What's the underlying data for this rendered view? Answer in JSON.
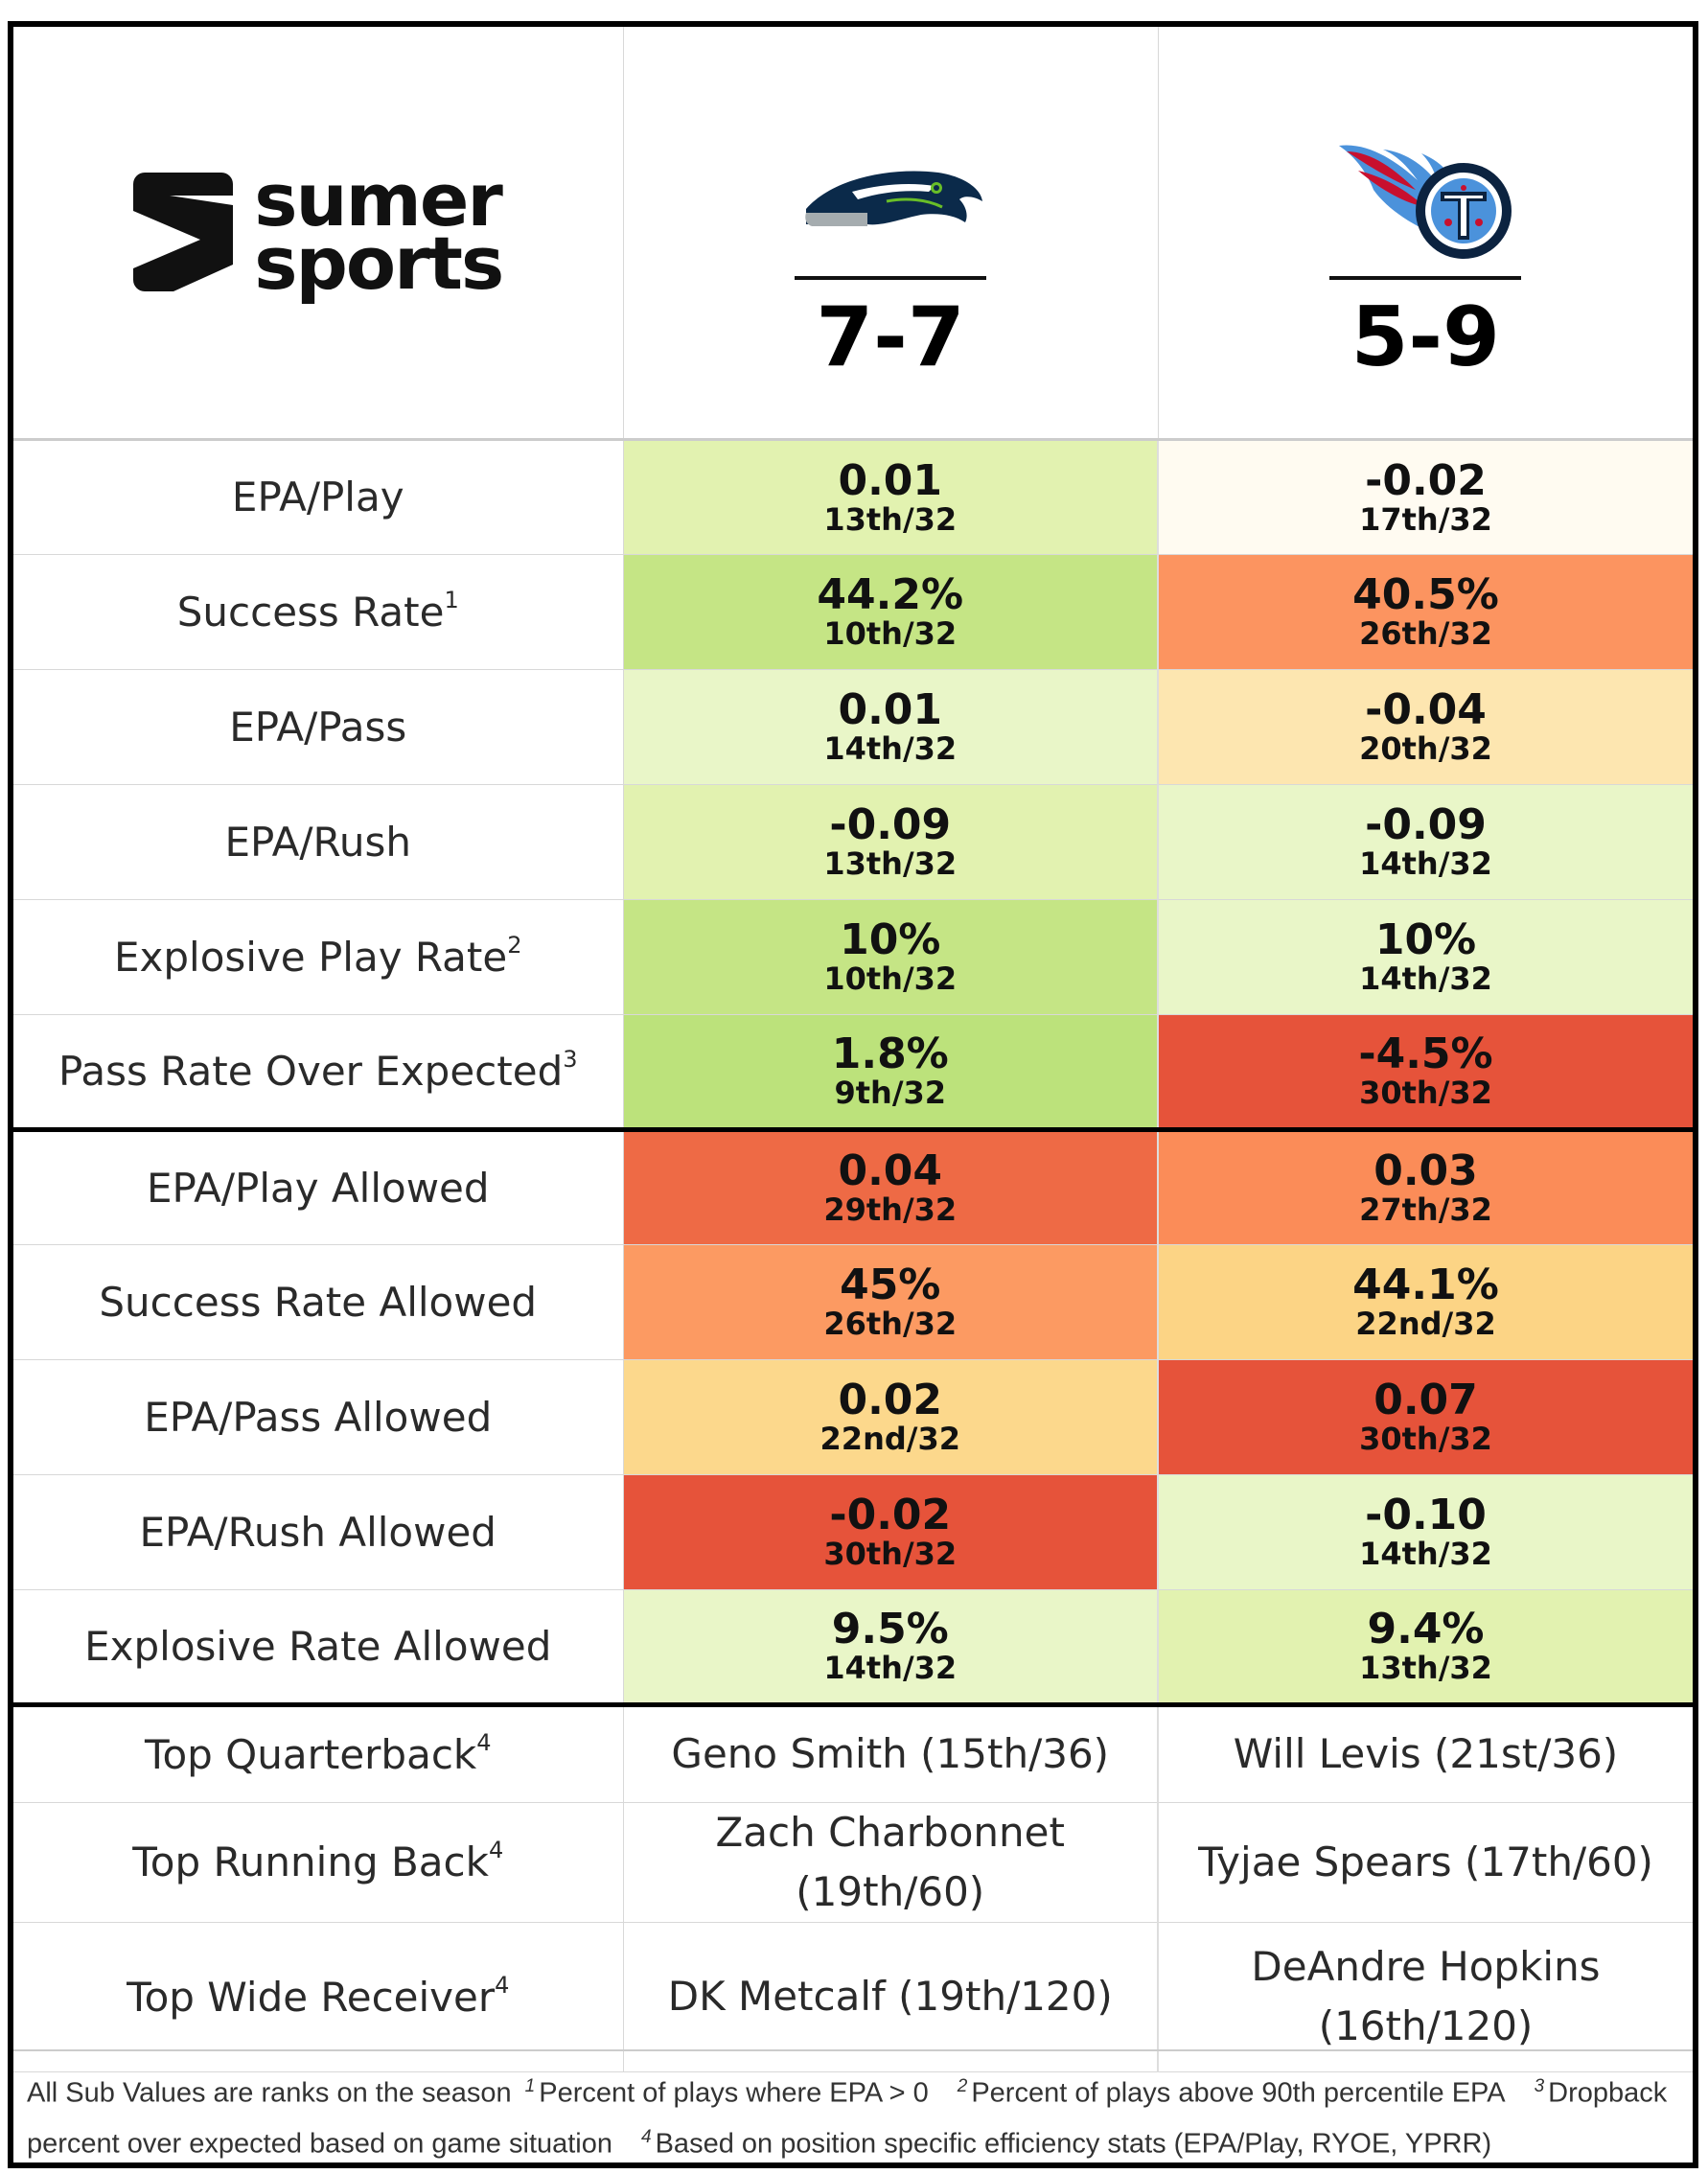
{
  "brand": {
    "line1": "sumer",
    "line2": "sports"
  },
  "teams": [
    {
      "logo": "seahawks-logo",
      "record": "7-7"
    },
    {
      "logo": "titans-logo",
      "record": "5-9"
    }
  ],
  "offense": [
    {
      "label": "EPA/Play",
      "sup": "",
      "team1": {
        "value": "0.01",
        "rank": "13th/32",
        "color": "#e2f2b0"
      },
      "team2": {
        "value": "-0.02",
        "rank": "17th/32",
        "color": "#fffbf1"
      }
    },
    {
      "label": "Success Rate",
      "sup": "1",
      "team1": {
        "value": "44.2%",
        "rank": "10th/32",
        "color": "#c5e585"
      },
      "team2": {
        "value": "40.5%",
        "rank": "26th/32",
        "color": "#fc9460"
      }
    },
    {
      "label": "EPA/Pass",
      "sup": "",
      "team1": {
        "value": "0.01",
        "rank": "14th/32",
        "color": "#e9f6c8"
      },
      "team2": {
        "value": "-0.04",
        "rank": "20th/32",
        "color": "#fde6b0"
      }
    },
    {
      "label": "EPA/Rush",
      "sup": "",
      "team1": {
        "value": "-0.09",
        "rank": "13th/32",
        "color": "#e2f2b0"
      },
      "team2": {
        "value": "-0.09",
        "rank": "14th/32",
        "color": "#e9f6c8"
      }
    },
    {
      "label": "Explosive Play Rate",
      "sup": "2",
      "team1": {
        "value": "10%",
        "rank": "10th/32",
        "color": "#c5e585"
      },
      "team2": {
        "value": "10%",
        "rank": "14th/32",
        "color": "#e9f6c8"
      }
    },
    {
      "label": "Pass Rate Over Expected",
      "sup": "3",
      "team1": {
        "value": "1.8%",
        "rank": "9th/32",
        "color": "#bce27b"
      },
      "team2": {
        "value": "-4.5%",
        "rank": "30th/32",
        "color": "#e6533a"
      }
    }
  ],
  "defense": [
    {
      "label": "EPA/Play Allowed",
      "sup": "",
      "team1": {
        "value": "0.04",
        "rank": "29th/32",
        "color": "#ee6a45"
      },
      "team2": {
        "value": "0.03",
        "rank": "27th/32",
        "color": "#fb8c58"
      }
    },
    {
      "label": "Success Rate Allowed",
      "sup": "",
      "team1": {
        "value": "45%",
        "rank": "26th/32",
        "color": "#fc9a62"
      },
      "team2": {
        "value": "44.1%",
        "rank": "22nd/32",
        "color": "#fcd485"
      }
    },
    {
      "label": "EPA/Pass Allowed",
      "sup": "",
      "team1": {
        "value": "0.02",
        "rank": "22nd/32",
        "color": "#fcd88c"
      },
      "team2": {
        "value": "0.07",
        "rank": "30th/32",
        "color": "#e6533a"
      }
    },
    {
      "label": "EPA/Rush Allowed",
      "sup": "",
      "team1": {
        "value": "-0.02",
        "rank": "30th/32",
        "color": "#e6533a"
      },
      "team2": {
        "value": "-0.10",
        "rank": "14th/32",
        "color": "#e9f6c8"
      }
    },
    {
      "label": "Explosive Rate Allowed",
      "sup": "",
      "team1": {
        "value": "9.5%",
        "rank": "14th/32",
        "color": "#e9f6c8"
      },
      "team2": {
        "value": "9.4%",
        "rank": "13th/32",
        "color": "#e2f2b0"
      }
    }
  ],
  "players": [
    {
      "label": "Top Quarterback",
      "sup": "4",
      "team1": "Geno Smith (15th/36)",
      "team2": "Will Levis (21st/36)"
    },
    {
      "label": "Top Running Back",
      "sup": "4",
      "team1": "Zach Charbonnet (19th/60)",
      "team2": "Tyjae Spears (17th/60)"
    },
    {
      "label": "Top Wide Receiver",
      "sup": "4",
      "team1": "DK Metcalf (19th/120)",
      "team2": "DeAndre Hopkins (16th/120)"
    }
  ],
  "footnotes": {
    "intro": "All Sub Values are ranks on the season",
    "notes": [
      {
        "sup": "1",
        "text": "Percent of plays where EPA > 0"
      },
      {
        "sup": "2",
        "text": "Percent of plays above 90th percentile EPA"
      },
      {
        "sup": "3",
        "text": "Dropback percent over expected based on game situation"
      },
      {
        "sup": "4",
        "text": "Based on position specific efficiency stats (EPA/Play, RYOE, YPRR)"
      }
    ]
  }
}
